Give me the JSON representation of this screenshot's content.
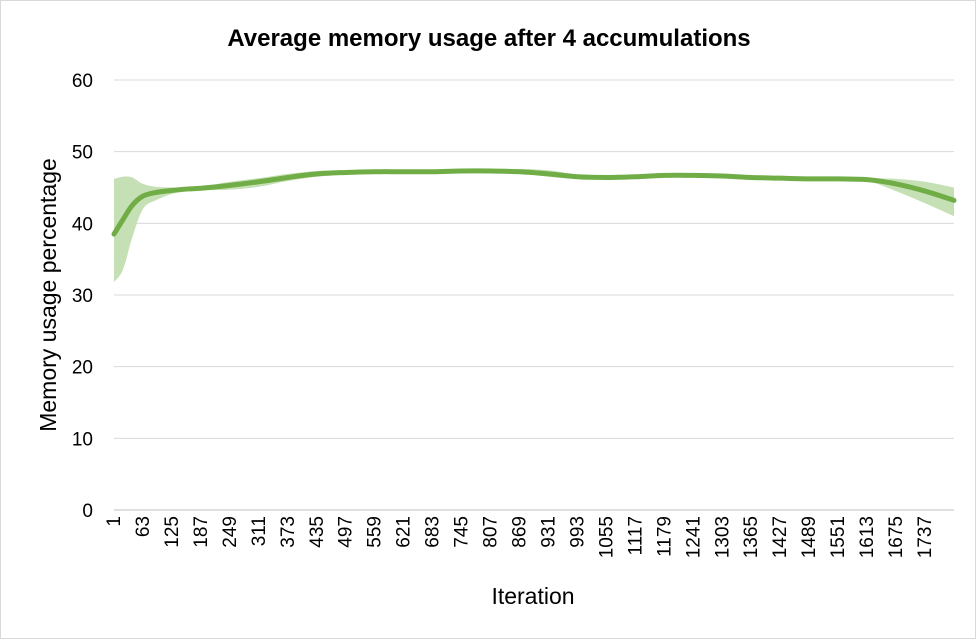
{
  "chart_data": {
    "type": "line",
    "title": "Average memory usage after 4 accumulations",
    "xlabel": "Iteration",
    "ylabel": "Memory usage percentage",
    "ylim": [
      0,
      60
    ],
    "xlim": [
      1,
      1799
    ],
    "yticks": [
      "0",
      "10",
      "20",
      "30",
      "40",
      "50",
      "60"
    ],
    "xticks": [
      "1",
      "63",
      "125",
      "187",
      "249",
      "311",
      "373",
      "435",
      "497",
      "559",
      "621",
      "683",
      "745",
      "807",
      "869",
      "931",
      "993",
      "1055",
      "1117",
      "1179",
      "1241",
      "1303",
      "1365",
      "1427",
      "1489",
      "1551",
      "1613",
      "1675",
      "1737"
    ],
    "grid": "horizontal",
    "legend": "none",
    "colors": {
      "line": "#70ad47",
      "band": "#c5e0b4"
    },
    "series": [
      {
        "x": [
          1,
          20,
          40,
          63,
          90,
          125,
          160,
          187,
          249,
          311,
          373,
          435,
          497,
          559,
          621,
          683,
          745,
          807,
          869,
          931,
          993,
          1055,
          1117,
          1179,
          1241,
          1303,
          1365,
          1427,
          1489,
          1551,
          1613,
          1675,
          1737,
          1799
        ],
        "y": [
          38.5,
          40.5,
          42.5,
          43.8,
          44.3,
          44.6,
          44.8,
          44.9,
          45.3,
          45.8,
          46.4,
          46.9,
          47.1,
          47.2,
          47.2,
          47.2,
          47.3,
          47.3,
          47.2,
          46.9,
          46.5,
          46.4,
          46.5,
          46.7,
          46.7,
          46.6,
          46.4,
          46.3,
          46.2,
          46.2,
          46.1,
          45.5,
          44.5,
          43.2
        ],
        "upper": [
          46.2,
          46.5,
          46.4,
          45.5,
          45.1,
          45.0,
          45.0,
          45.1,
          45.8,
          46.3,
          46.9,
          47.3,
          47.4,
          47.4,
          47.3,
          47.3,
          47.4,
          47.5,
          47.6,
          47.4,
          46.8,
          46.5,
          46.6,
          46.8,
          46.8,
          46.7,
          46.5,
          46.4,
          46.3,
          46.3,
          46.3,
          46.2,
          45.8,
          45.0
        ],
        "lower": [
          31.8,
          33.5,
          38.0,
          42.0,
          43.2,
          44.1,
          44.5,
          44.6,
          44.7,
          45.1,
          45.9,
          46.5,
          46.8,
          47.0,
          47.1,
          47.1,
          47.2,
          47.2,
          47.0,
          46.5,
          46.2,
          46.2,
          46.3,
          46.5,
          46.6,
          46.5,
          46.3,
          46.2,
          46.1,
          46.1,
          45.9,
          44.5,
          42.8,
          41.0
        ]
      }
    ]
  }
}
